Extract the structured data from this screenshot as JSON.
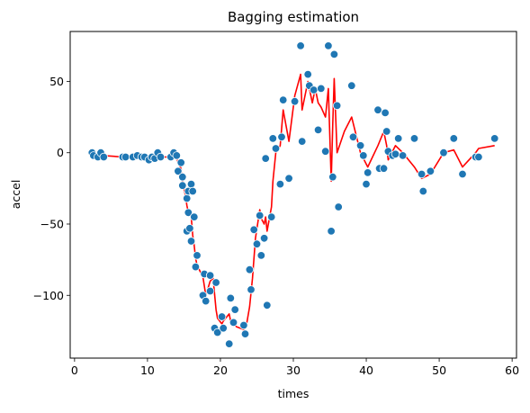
{
  "chart_data": {
    "type": "scatter",
    "title": "Bagging estimation",
    "xlabel": "times",
    "ylabel": "accel",
    "xlim": [
      -0.6,
      60.6
    ],
    "ylim": [
      -144,
      85
    ],
    "xticks": [
      0,
      10,
      20,
      30,
      40,
      50,
      60
    ],
    "yticks": [
      -100,
      -50,
      0,
      50
    ],
    "grid": false,
    "colors": {
      "points": "#1f77b4",
      "line": "#ff0000",
      "point_edge": "#ffffff"
    },
    "series": [
      {
        "type": "scatter",
        "x": [
          2.4,
          2.6,
          3.2,
          3.6,
          4.0,
          6.6,
          7.0,
          8.0,
          8.6,
          9.2,
          9.6,
          10.2,
          10.6,
          11.0,
          11.4,
          11.8,
          13.2,
          13.6,
          14.0,
          14.2,
          14.6,
          14.8,
          14.8,
          15.4,
          15.4,
          15.6,
          15.6,
          15.8,
          16.0,
          16.0,
          16.2,
          16.4,
          16.6,
          16.8,
          17.6,
          17.8,
          18.0,
          18.6,
          18.6,
          19.2,
          19.4,
          19.6,
          20.2,
          20.4,
          21.2,
          21.4,
          21.8,
          22.0,
          23.2,
          23.4,
          24.0,
          24.2,
          24.6,
          25.0,
          25.4,
          25.6,
          26.0,
          26.2,
          26.4,
          27.0,
          27.2,
          27.6,
          28.2,
          28.4,
          28.6,
          29.4,
          30.2,
          31.0,
          31.2,
          32.0,
          32.2,
          32.8,
          33.4,
          33.8,
          34.4,
          34.8,
          35.2,
          35.4,
          35.6,
          36.0,
          36.2,
          38.0,
          38.2,
          39.2,
          39.6,
          40.0,
          40.2,
          41.6,
          41.8,
          42.4,
          42.6,
          42.8,
          43.0,
          43.6,
          44.0,
          44.4,
          45.0,
          46.6,
          47.6,
          47.8,
          48.8,
          50.6,
          52.0,
          53.2,
          55.0,
          55.4,
          57.6
        ],
        "y": [
          0,
          -2,
          -3,
          0,
          -3,
          -3,
          -3,
          -3,
          -2,
          -3,
          -3,
          -5,
          -3,
          -4,
          0,
          -3,
          -3,
          0,
          -2,
          -13,
          -7,
          -23,
          -17,
          -55,
          -32,
          -27,
          -42,
          -53,
          -62,
          -22,
          -27,
          -45,
          -80,
          -72,
          -100,
          -85,
          -104,
          -97,
          -86,
          -123,
          -91,
          -126,
          -115,
          -123,
          -134,
          -102,
          -119,
          -110,
          -121,
          -127,
          -82,
          -96,
          -54,
          -64,
          -44,
          -72,
          -60,
          -4,
          -107,
          -45,
          10,
          3,
          -22,
          11,
          37,
          -18,
          36,
          75,
          8,
          55,
          47,
          44,
          16,
          45,
          1,
          75,
          -55,
          -17,
          69,
          33,
          -38,
          47,
          11,
          5,
          -2,
          -22,
          -14,
          30,
          -11,
          -11,
          28,
          15,
          1,
          -2,
          -1,
          10,
          -2,
          10,
          -15,
          -27,
          -13,
          0,
          10,
          -15,
          -3,
          -3,
          10
        ]
      },
      {
        "type": "line",
        "x": [
          2.4,
          3.2,
          4.0,
          6.6,
          8.0,
          10.2,
          11.4,
          13.2,
          14.0,
          14.2,
          14.6,
          14.8,
          15.2,
          15.4,
          15.6,
          15.8,
          16.0,
          16.2,
          16.4,
          16.6,
          16.8,
          17.6,
          18.0,
          18.6,
          19.0,
          19.4,
          19.6,
          20.2,
          20.4,
          21.2,
          21.4,
          21.8,
          22.2,
          23.2,
          23.6,
          24.0,
          24.4,
          24.8,
          25.4,
          25.6,
          26.0,
          26.2,
          26.4,
          27.0,
          27.2,
          27.6,
          28.2,
          28.6,
          29.4,
          30.2,
          31.0,
          31.2,
          32.0,
          32.6,
          33.0,
          33.4,
          33.8,
          34.4,
          34.8,
          35.2,
          35.4,
          35.6,
          36.0,
          37.0,
          38.0,
          39.2,
          40.2,
          41.6,
          42.4,
          42.8,
          43.0,
          44.0,
          45.0,
          46.6,
          47.6,
          48.8,
          50.6,
          52.0,
          53.2,
          55.0,
          55.4,
          57.6
        ],
        "y": [
          -1,
          -2,
          -2,
          -3,
          -3,
          -3,
          -3,
          -3,
          -3,
          -7,
          -11,
          -20,
          -30,
          -37,
          -42,
          -44,
          -45,
          -58,
          -65,
          -74,
          -79,
          -87,
          -100,
          -90,
          -88,
          -110,
          -116,
          -120,
          -118,
          -113,
          -118,
          -120,
          -122,
          -124,
          -120,
          -108,
          -88,
          -60,
          -40,
          -46,
          -50,
          -45,
          -55,
          -38,
          -20,
          0,
          5,
          30,
          8,
          40,
          55,
          30,
          50,
          35,
          45,
          35,
          32,
          25,
          45,
          -20,
          20,
          52,
          0,
          15,
          25,
          0,
          -10,
          5,
          15,
          5,
          -5,
          5,
          0,
          -10,
          -18,
          -15,
          0,
          2,
          -10,
          0,
          3,
          5
        ]
      }
    ]
  }
}
